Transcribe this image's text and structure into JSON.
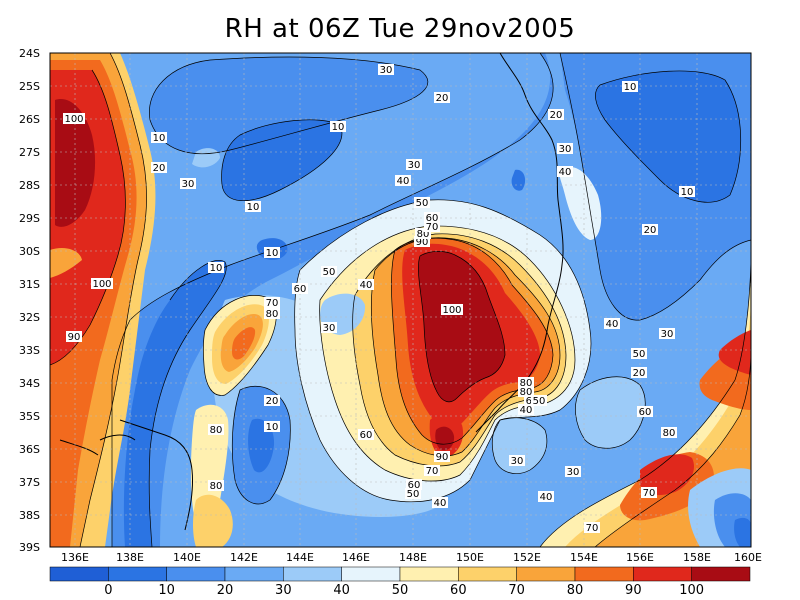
{
  "title": "RH at 06Z Tue 29nov2005",
  "lat_labels": [
    "24S",
    "25S",
    "26S",
    "27S",
    "28S",
    "29S",
    "30S",
    "31S",
    "32S",
    "33S",
    "34S",
    "35S",
    "36S",
    "37S",
    "38S",
    "39S"
  ],
  "lon_labels": [
    "136E",
    "138E",
    "140E",
    "142E",
    "144E",
    "146E",
    "148E",
    "150E",
    "152E",
    "154E",
    "156E",
    "158E",
    "160E"
  ],
  "colorbar": {
    "labels": [
      "0",
      "10",
      "20",
      "30",
      "40",
      "50",
      "60",
      "70",
      "80",
      "90",
      "100"
    ],
    "colors": [
      "#1f5fd6",
      "#2b74e3",
      "#4a8fee",
      "#6aaaf4",
      "#9ccbf8",
      "#e6f4fc",
      "#fff0b0",
      "#fdd16a",
      "#f9a43a",
      "#f26a1e",
      "#e0281c",
      "#a80c14"
    ]
  },
  "contour_labels": {
    "l100a": "100",
    "l100b": "100",
    "l100c": "100",
    "l90a": "90",
    "l90b": "90",
    "l90c": "90",
    "l80a": "80",
    "l80b": "80",
    "l80c": "80",
    "l80d": "80",
    "l80e": "80",
    "l80f": "80",
    "l80g": "80",
    "l70a": "70",
    "l70b": "70",
    "l70c": "70",
    "l70d": "70",
    "l70e": "70",
    "l60a": "60",
    "l60b": "60",
    "l60c": "60",
    "l60d": "60",
    "l60e": "60",
    "l60f": "60",
    "l50a": "50",
    "l50b": "50",
    "l50c": "50",
    "l50d": "50",
    "l50e": "50",
    "l40a": "40",
    "l40b": "40",
    "l40c": "40",
    "l40d": "40",
    "l40e": "40",
    "l40f": "40",
    "l40g": "40",
    "l30a": "30",
    "l30b": "30",
    "l30c": "30",
    "l30d": "30",
    "l30e": "30",
    "l30f": "30",
    "l30g": "30",
    "l30h": "30",
    "l20a": "20",
    "l20b": "20",
    "l20c": "20",
    "l20d": "20",
    "l20e": "20",
    "l20f": "20",
    "l10a": "10",
    "l10b": "10",
    "l10c": "10",
    "l10d": "10",
    "l10e": "10",
    "l10f": "10",
    "l10g": "10",
    "l10h": "10"
  }
}
